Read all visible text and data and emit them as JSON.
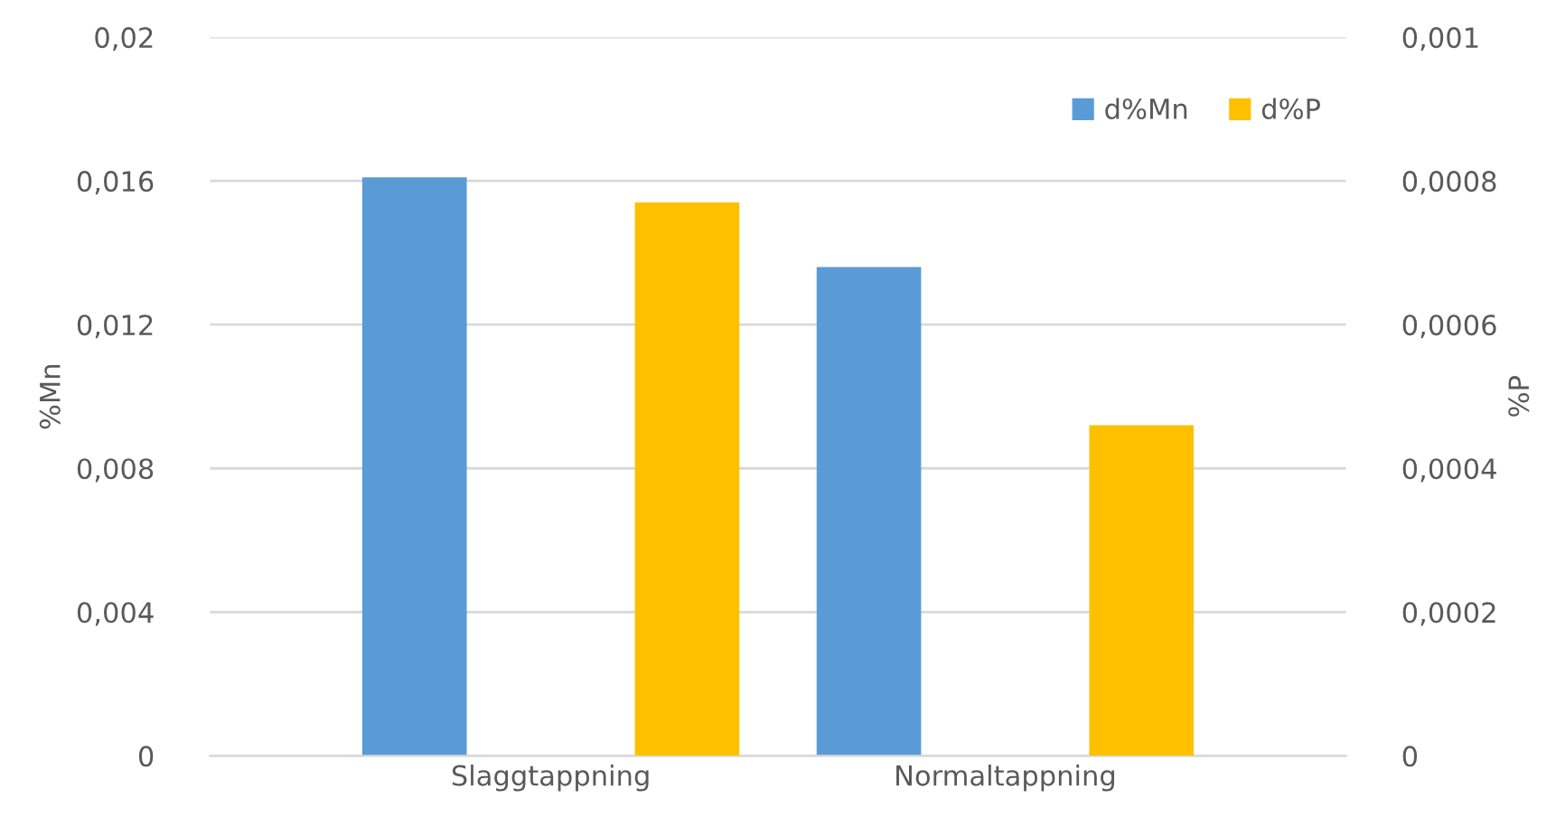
{
  "chart_data": {
    "type": "bar",
    "ylabel": "%Mn",
    "y2label": "%P",
    "categories": [
      "Slaggtappning",
      "Normaltappning"
    ],
    "series": [
      {
        "name": "d%Mn",
        "color": "#5b9bd5",
        "values": [
          0.0161,
          0.0136
        ]
      },
      {
        "name": "d%P",
        "color": "#ffc000",
        "values": [
          0.00077,
          0.00046
        ],
        "axis": "y2"
      }
    ],
    "ylim": [
      0,
      0.02
    ],
    "yticks": [
      {
        "value": 0,
        "label": "0"
      },
      {
        "value": 0.004,
        "label": "0,004"
      },
      {
        "value": 0.008,
        "label": "0,008"
      },
      {
        "value": 0.012,
        "label": "0,012"
      },
      {
        "value": 0.016,
        "label": "0,016"
      },
      {
        "value": 0.02,
        "label": "0,02"
      }
    ],
    "y2lim": [
      0,
      0.001
    ],
    "y2ticks": [
      {
        "value": 0,
        "label": "0"
      },
      {
        "value": 0.0002,
        "label": "0,0002"
      },
      {
        "value": 0.0004,
        "label": "0,0004"
      },
      {
        "value": 0.0006,
        "label": "0,0006"
      },
      {
        "value": 0.0008,
        "label": "0,0008"
      },
      {
        "value": 0.001,
        "label": "0,001"
      }
    ],
    "grid": "y",
    "legend": "top right"
  }
}
